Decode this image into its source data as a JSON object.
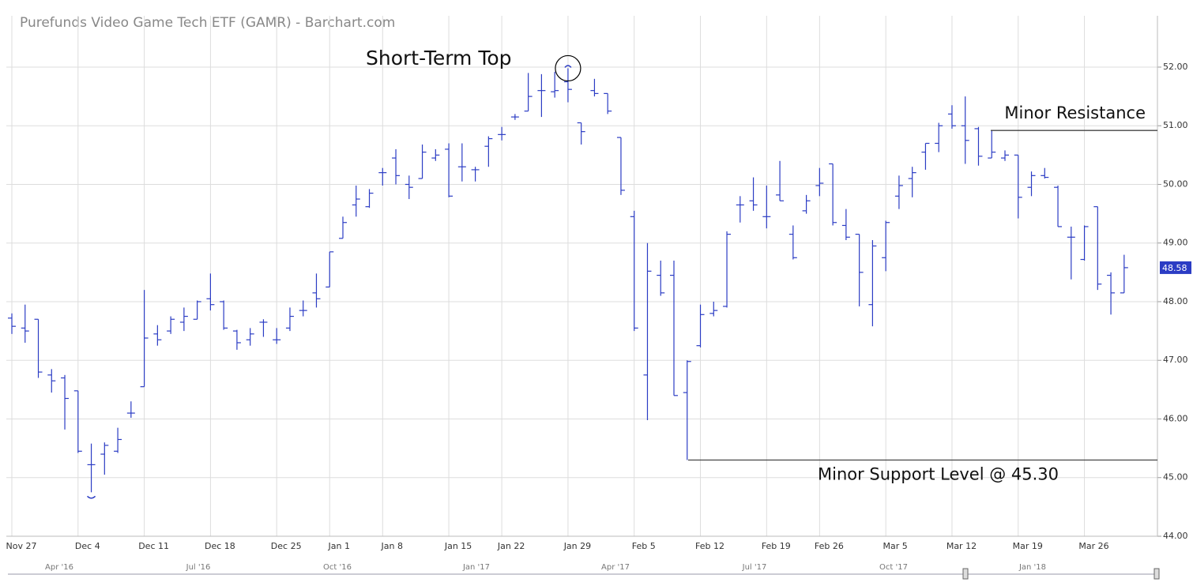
{
  "chart_data": {
    "type": "ohlc",
    "title": "Purefunds Video Game Tech ETF (GAMR) - Barchart.com",
    "color": "#2b3cc4",
    "categories": [
      "Nov 27",
      null,
      null,
      null,
      null,
      "Dec 4",
      null,
      null,
      null,
      null,
      "Dec 11",
      null,
      null,
      null,
      null,
      "Dec 18",
      null,
      null,
      null,
      null,
      "Dec 25",
      null,
      null,
      null,
      "Jan 1",
      null,
      null,
      null,
      "Jan 8",
      null,
      null,
      null,
      null,
      "Jan 15",
      null,
      null,
      null,
      "Jan 22",
      null,
      null,
      null,
      null,
      "Jan 29",
      null,
      null,
      null,
      null,
      "Feb 5",
      null,
      null,
      null,
      null,
      "Feb 12",
      null,
      null,
      null,
      null,
      "Feb 19",
      null,
      null,
      null,
      "Feb 26",
      null,
      null,
      null,
      null,
      "Mar 5",
      null,
      null,
      null,
      null,
      "Mar 12",
      null,
      null,
      null,
      null,
      "Mar 19",
      null,
      null,
      null,
      null,
      "Mar 26",
      null,
      null,
      null
    ],
    "open": [
      47.72,
      47.55,
      47.7,
      46.75,
      46.7,
      46.48,
      45.22,
      45.4,
      45.45,
      46.1,
      46.55,
      47.45,
      47.5,
      47.65,
      47.7,
      48.05,
      48.0,
      47.5,
      47.35,
      47.65,
      47.35,
      47.55,
      47.85,
      48.15,
      48.25,
      49.08,
      49.65,
      49.62,
      50.2,
      50.45,
      50.0,
      50.1,
      50.45,
      50.6,
      50.3,
      50.25,
      50.65,
      50.85,
      51.15,
      51.25,
      51.6,
      51.58,
      51.75,
      51.05,
      51.6,
      51.55,
      50.8,
      49.45,
      46.75,
      48.45,
      48.45,
      46.45,
      47.25,
      47.8,
      47.92,
      49.65,
      49.72,
      49.45,
      49.82,
      49.15,
      49.55,
      49.98,
      50.35,
      49.3,
      49.15,
      47.95,
      48.75,
      49.8,
      50.1,
      50.55,
      50.7,
      51.2,
      51.0,
      50.95,
      50.45,
      50.45,
      50.5,
      49.95,
      50.15,
      49.95,
      49.1,
      48.72,
      49.62,
      48.45,
      48.15
    ],
    "high": [
      47.8,
      47.95,
      47.7,
      46.85,
      46.75,
      46.48,
      45.58,
      45.6,
      45.85,
      46.3,
      48.2,
      47.6,
      47.75,
      47.9,
      48.02,
      48.48,
      48.02,
      47.52,
      47.55,
      47.7,
      47.55,
      47.9,
      48.02,
      48.48,
      48.85,
      49.45,
      49.98,
      49.92,
      50.28,
      50.6,
      50.15,
      50.68,
      50.6,
      50.7,
      50.7,
      50.3,
      50.82,
      50.98,
      51.2,
      51.9,
      51.88,
      51.92,
      51.98,
      51.05,
      51.8,
      51.55,
      50.8,
      49.55,
      49.0,
      48.7,
      48.7,
      47.0,
      47.95,
      48.0,
      49.2,
      49.8,
      50.12,
      49.98,
      50.4,
      49.3,
      49.82,
      50.28,
      50.35,
      49.58,
      49.15,
      49.05,
      49.38,
      50.15,
      50.3,
      50.7,
      51.05,
      51.35,
      51.5,
      50.98,
      50.92,
      50.58,
      50.5,
      50.22,
      50.28,
      49.98,
      49.28,
      49.3,
      49.62,
      48.5,
      48.8
    ],
    "low": [
      47.45,
      47.3,
      46.7,
      46.45,
      45.82,
      45.42,
      44.75,
      45.05,
      45.42,
      46.02,
      46.55,
      47.25,
      47.45,
      47.5,
      47.7,
      47.85,
      47.52,
      47.18,
      47.25,
      47.4,
      47.28,
      47.5,
      47.75,
      47.9,
      48.25,
      49.08,
      49.45,
      49.6,
      49.98,
      50.0,
      49.75,
      50.1,
      50.4,
      49.78,
      50.05,
      50.05,
      50.3,
      50.75,
      51.1,
      51.25,
      51.15,
      51.48,
      51.4,
      50.68,
      51.5,
      51.2,
      49.82,
      47.5,
      45.98,
      48.1,
      46.4,
      45.3,
      47.22,
      47.75,
      47.9,
      49.35,
      49.55,
      49.25,
      49.72,
      48.72,
      49.5,
      49.8,
      49.3,
      49.05,
      47.92,
      47.58,
      48.52,
      49.58,
      49.78,
      50.25,
      50.55,
      50.95,
      50.35,
      50.32,
      50.45,
      50.4,
      49.42,
      49.8,
      50.1,
      49.28,
      48.38,
      48.7,
      48.2,
      47.78,
      48.15
    ],
    "close": [
      47.58,
      47.5,
      46.8,
      46.65,
      46.35,
      45.45,
      45.22,
      45.55,
      45.65,
      46.1,
      47.38,
      47.35,
      47.7,
      47.75,
      48.0,
      47.95,
      47.55,
      47.3,
      47.45,
      47.65,
      47.35,
      47.75,
      47.85,
      48.05,
      48.85,
      49.35,
      49.75,
      49.85,
      50.2,
      50.15,
      49.95,
      50.55,
      50.5,
      49.8,
      50.3,
      50.25,
      50.78,
      50.85,
      51.15,
      51.5,
      51.6,
      51.6,
      51.62,
      50.9,
      51.55,
      51.25,
      49.9,
      47.55,
      48.52,
      48.15,
      46.4,
      46.98,
      47.78,
      47.85,
      49.15,
      49.65,
      49.65,
      49.45,
      49.72,
      48.75,
      49.72,
      50.02,
      49.35,
      49.1,
      48.5,
      48.95,
      49.35,
      49.98,
      50.2,
      50.7,
      51.0,
      51.0,
      50.75,
      50.48,
      50.55,
      50.5,
      49.78,
      50.15,
      50.12,
      49.28,
      49.1,
      49.28,
      48.3,
      48.15,
      48.58
    ],
    "ylim": [
      44,
      52.875
    ],
    "yticks": [
      {
        "value": 44,
        "label": "44.00"
      },
      {
        "value": 45,
        "label": "45.00"
      },
      {
        "value": 46,
        "label": "46.00"
      },
      {
        "value": 47,
        "label": "47.00"
      },
      {
        "value": 48,
        "label": "48.00"
      },
      {
        "value": 49,
        "label": "49.00"
      },
      {
        "value": 50,
        "label": "50.00"
      },
      {
        "value": 51,
        "label": "51.00"
      },
      {
        "value": 52,
        "label": "52.00"
      }
    ],
    "grid": true,
    "annotations": [
      {
        "text": "Short-Term Top"
      },
      {
        "text": "Minor Resistance",
        "value": 50.92
      },
      {
        "text": "Minor Support Level @ 45.30",
        "value": 45.3
      }
    ],
    "navigator": {
      "labels": [
        "Apr '16",
        "Jul '16",
        "Oct '16",
        "Jan '17",
        "Apr '17",
        "Jul '17",
        "Oct '17",
        "Jan '18"
      ]
    }
  }
}
